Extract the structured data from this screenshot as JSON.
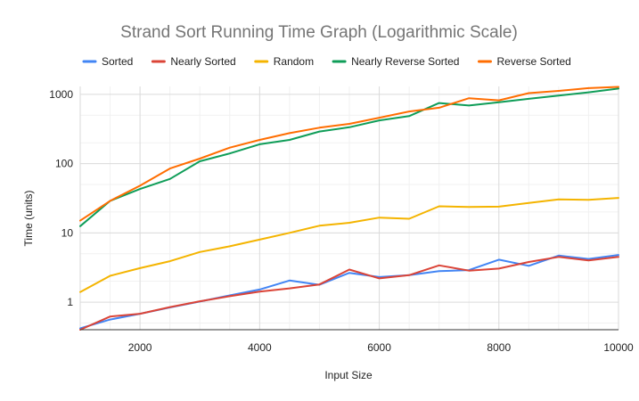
{
  "chart_data": {
    "type": "line",
    "title": "Strand Sort Running Time Graph (Logarithmic Scale)",
    "xlabel": "Input Size",
    "ylabel": "Time (units)",
    "xlim": [
      1000,
      10000
    ],
    "ylim": [
      0.4,
      1300
    ],
    "y_scale": "log",
    "grid": true,
    "legend_position": "top",
    "x_ticks": [
      2000,
      4000,
      6000,
      8000,
      10000
    ],
    "x_tick_labels": [
      "2000",
      "4000",
      "6000",
      "8000",
      "10000"
    ],
    "y_ticks": [
      1,
      10,
      100,
      1000
    ],
    "y_tick_labels": [
      "1",
      "10",
      "100",
      "1000"
    ],
    "x": [
      1000,
      1500,
      2000,
      2500,
      3000,
      3500,
      4000,
      4500,
      5000,
      5500,
      6000,
      6500,
      7000,
      7500,
      8000,
      8500,
      9000,
      9500,
      10000
    ],
    "series": [
      {
        "name": "Sorted",
        "color": "#4285f4",
        "values": [
          0.42,
          0.56,
          0.68,
          0.84,
          1.02,
          1.25,
          1.52,
          2.05,
          1.78,
          2.65,
          2.3,
          2.45,
          2.8,
          2.9,
          4.1,
          3.35,
          4.7,
          4.2,
          4.8
        ]
      },
      {
        "name": "Nearly Sorted",
        "color": "#db4437",
        "values": [
          0.4,
          0.62,
          0.68,
          0.85,
          1.03,
          1.22,
          1.42,
          1.58,
          1.8,
          2.95,
          2.2,
          2.45,
          3.4,
          2.85,
          3.05,
          3.8,
          4.5,
          4.0,
          4.5
        ]
      },
      {
        "name": "Random",
        "color": "#f4b400",
        "values": [
          1.4,
          2.4,
          3.1,
          3.9,
          5.3,
          6.4,
          8.0,
          10.0,
          12.7,
          14.0,
          16.6,
          16.0,
          24.2,
          23.7,
          23.9,
          27.0,
          30.5,
          30.0,
          32.0
        ]
      },
      {
        "name": "Nearly Reverse Sorted",
        "color": "#0f9d58",
        "values": [
          12.5,
          29.0,
          43.0,
          60.0,
          108.0,
          140.0,
          190.0,
          220.0,
          290.0,
          335.0,
          420.0,
          485.0,
          750.0,
          690.0,
          770.0,
          860.0,
          960.0,
          1070.0,
          1210.0
        ]
      },
      {
        "name": "Reverse Sorted",
        "color": "#ff6d01",
        "values": [
          15.0,
          29.0,
          48.0,
          85.0,
          118.0,
          170.0,
          220.0,
          275.0,
          330.0,
          375.0,
          460.0,
          565.0,
          640.0,
          880.0,
          820.0,
          1040.0,
          1120.0,
          1230.0,
          1280.0
        ]
      }
    ]
  }
}
